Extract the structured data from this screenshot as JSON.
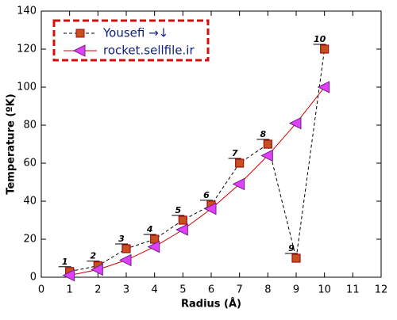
{
  "chart_data": {
    "type": "line",
    "xlabel": "Radius (Å)",
    "ylabel": "Temperature (ºK)",
    "xlim": [
      0,
      12
    ],
    "xticks": [
      0,
      1,
      2,
      3,
      4,
      5,
      6,
      7,
      8,
      9,
      10,
      11,
      12
    ],
    "ylim": [
      0,
      140
    ],
    "yticks": [
      0,
      20,
      40,
      60,
      80,
      100,
      120,
      140
    ],
    "legend": "upper-left",
    "series": [
      {
        "name": "Yousefi →↓",
        "color": "#000000",
        "marker": "square",
        "marker_color": "#c8501e",
        "dashed": true,
        "x": [
          1,
          2,
          3,
          4,
          5,
          6,
          7,
          8,
          9,
          10
        ],
        "values": [
          3,
          6,
          15,
          20,
          30,
          38,
          60,
          70,
          10,
          120
        ],
        "point_labels": [
          "1",
          "2",
          "3",
          "4",
          "5",
          "6",
          "7",
          "8",
          "9",
          "10"
        ]
      },
      {
        "name": "rocket.sellfile.ir",
        "color": "#d40000",
        "marker": "triangle-left",
        "marker_color": "#e040fb",
        "dashed": false,
        "x": [
          1,
          2,
          3,
          4,
          5,
          6,
          7,
          8,
          9,
          10
        ],
        "values": [
          1,
          4,
          9,
          16,
          25,
          36,
          49,
          64,
          81,
          100
        ]
      }
    ]
  }
}
